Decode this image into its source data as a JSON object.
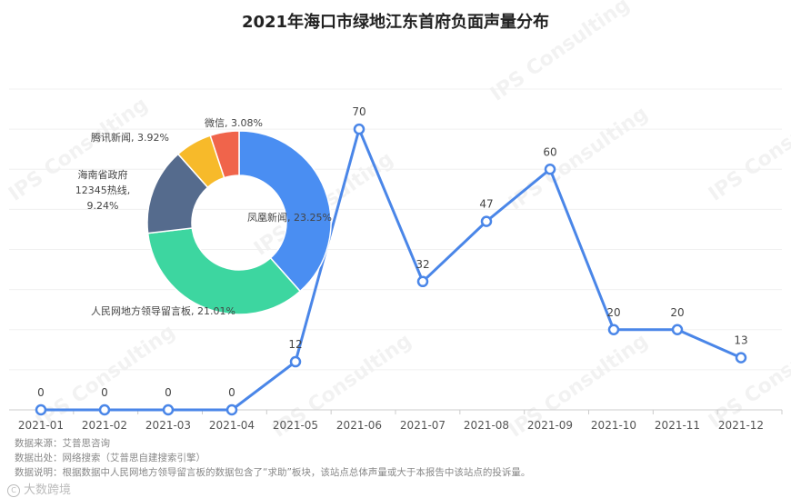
{
  "title": "2021年海口市绿地江东首府负面声量分布",
  "chart_data": [
    {
      "type": "line",
      "categories": [
        "2021-01",
        "2021-02",
        "2021-03",
        "2021-04",
        "2021-05",
        "2021-06",
        "2021-07",
        "2021-08",
        "2021-09",
        "2021-10",
        "2021-11",
        "2021-12"
      ],
      "values": [
        0,
        0,
        0,
        0,
        12,
        70,
        32,
        47,
        60,
        20,
        20,
        13
      ],
      "ylim": [
        0,
        80
      ],
      "grid": true,
      "color": "#4A86E8"
    },
    {
      "type": "pie",
      "donut": true,
      "labels": [
        "凤凰新闻, 23.25%",
        "人民网地方领导留言板, 21.01%",
        "海南省政府\n12345热线,\n9.24%",
        "腾讯新闻, 3.92%",
        "微信, 3.08%"
      ],
      "slices": [
        {
          "name": "凤凰新闻",
          "value": 23.25,
          "color": "#4A8EF2"
        },
        {
          "name": "人民网地方领导留言板",
          "value": 21.01,
          "color": "#3DD6A0"
        },
        {
          "name": "海南省政府12345热线",
          "value": 9.24,
          "color": "#556B8D"
        },
        {
          "name": "腾讯新闻",
          "value": 3.92,
          "color": "#F7BA2A"
        },
        {
          "name": "微信",
          "value": 3.08,
          "color": "#F0644B"
        }
      ]
    }
  ],
  "footnotes": {
    "source": "数据来源：艾普思咨询",
    "origin": "数据出处：网络搜索（艾普思自建搜索引擎）",
    "note": "数据说明：根据数据中人民网地方领导留言板的数据包含了“求助”板块，该站点总体声量或大于本报告中该站点的投诉量。"
  },
  "brand": "大数跨境",
  "watermark": "IPS Consulting"
}
